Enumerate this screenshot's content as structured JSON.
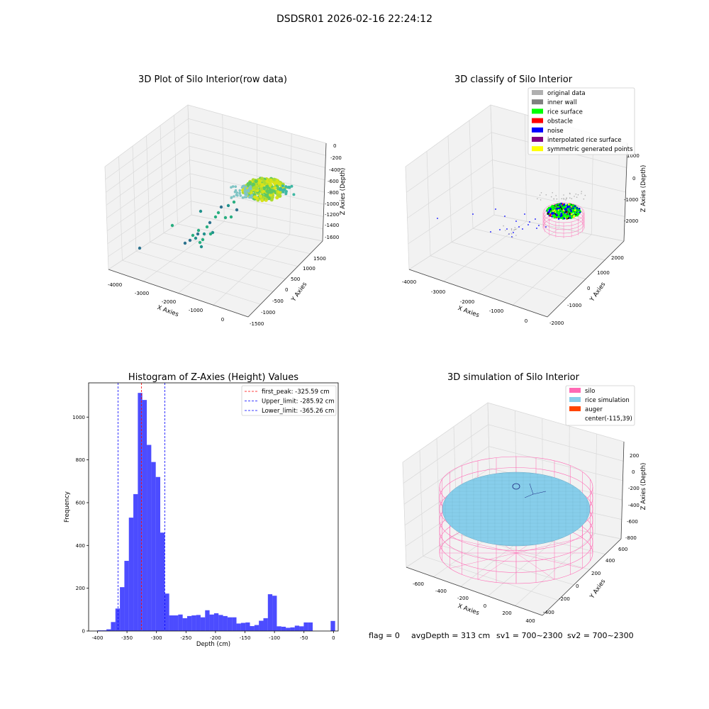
{
  "suptitle": "DSDSR01 2026-02-16 22:24:12",
  "footer": {
    "flag": "flag = 0",
    "avg_depth": "avgDepth = 313 cm",
    "sv1": "sv1 = 700~2300",
    "sv2": "sv2 = 700~2300"
  },
  "chart_data": [
    {
      "type": "scatter",
      "projection": "3d",
      "title": "3D Plot of Silo Interior(row data)",
      "xlabel": "X Axies",
      "ylabel": "Y Axies",
      "zlabel": "Z Axies (Depth)",
      "xticks": [
        "-4000",
        "-3000",
        "-2000",
        "-1000",
        "0"
      ],
      "yticks": [
        "-1500",
        "-1000",
        "-500",
        "0",
        "500",
        "1000",
        "1500"
      ],
      "zticks": [
        "0",
        "-200",
        "-400",
        "-600",
        "-800",
        "-1000",
        "-1200",
        "-1400",
        "-1600"
      ],
      "colormap": "viridis",
      "groups": [
        {
          "name": "rice surface cluster",
          "approx_z": [
            -900,
            -600
          ]
        },
        {
          "name": "scattered points",
          "approx_z": [
            -1700,
            -900
          ]
        }
      ]
    },
    {
      "type": "scatter",
      "projection": "3d",
      "title": "3D classify of Silo Interior",
      "zlabel": "Z Axies (Depth)",
      "ylabel": "Y Axies",
      "xlabel": "X Axies",
      "xticks": [
        "-4000",
        "-3000",
        "-2000",
        "-1000",
        "0"
      ],
      "yticks": [
        "-2000",
        "-1000",
        "0",
        "1000",
        "2000"
      ],
      "zticks": [
        "1000",
        "0",
        "-1000",
        "-2000"
      ],
      "legend_position": "upper right",
      "legend": [
        {
          "label": "original data",
          "color": "#b0b0b0"
        },
        {
          "label": "inner wall",
          "color": "#808080"
        },
        {
          "label": "rice surface",
          "color": "#00ff00"
        },
        {
          "label": "obstacle",
          "color": "#ff0000"
        },
        {
          "label": "noise",
          "color": "#0000ff"
        },
        {
          "label": "interpolated rice surface",
          "color": "#800080"
        },
        {
          "label": "symmetric generated points",
          "color": "#ffff00"
        }
      ]
    },
    {
      "type": "bar",
      "subtype": "histogram",
      "title": "Histogram of Z-Axies (Height) Values",
      "xlabel": "Depth (cm)",
      "ylabel": "Frequency",
      "xlim": [
        -415,
        8
      ],
      "ylim": [
        0,
        1160
      ],
      "xticks": [
        -400,
        -350,
        -300,
        -250,
        -200,
        -150,
        -100,
        -50,
        0
      ],
      "yticks": [
        0,
        200,
        400,
        600,
        800,
        1000
      ],
      "bar_color": "#0000ff",
      "bin_width": 7.6,
      "bins": [
        {
          "x0": -400,
          "count": 3
        },
        {
          "x0": -392.4,
          "count": 3
        },
        {
          "x0": -384.8,
          "count": 8
        },
        {
          "x0": -377.2,
          "count": 42
        },
        {
          "x0": -369.6,
          "count": 105
        },
        {
          "x0": -362,
          "count": 205
        },
        {
          "x0": -354.4,
          "count": 328
        },
        {
          "x0": -346.8,
          "count": 530
        },
        {
          "x0": -339.2,
          "count": 640
        },
        {
          "x0": -331.6,
          "count": 1113
        },
        {
          "x0": -324,
          "count": 1080
        },
        {
          "x0": -316.4,
          "count": 870
        },
        {
          "x0": -308.8,
          "count": 790
        },
        {
          "x0": -301.2,
          "count": 720
        },
        {
          "x0": -293.6,
          "count": 460
        },
        {
          "x0": -286,
          "count": 175
        },
        {
          "x0": -278.4,
          "count": 73
        },
        {
          "x0": -270.8,
          "count": 73
        },
        {
          "x0": -263.2,
          "count": 77
        },
        {
          "x0": -255.6,
          "count": 60
        },
        {
          "x0": -248,
          "count": 70
        },
        {
          "x0": -240.4,
          "count": 73
        },
        {
          "x0": -232.8,
          "count": 75
        },
        {
          "x0": -225.2,
          "count": 64
        },
        {
          "x0": -217.6,
          "count": 97
        },
        {
          "x0": -210,
          "count": 77
        },
        {
          "x0": -202.4,
          "count": 83
        },
        {
          "x0": -194.8,
          "count": 75
        },
        {
          "x0": -187.2,
          "count": 70
        },
        {
          "x0": -179.6,
          "count": 64
        },
        {
          "x0": -172,
          "count": 64
        },
        {
          "x0": -164.4,
          "count": 35
        },
        {
          "x0": -156.8,
          "count": 38
        },
        {
          "x0": -149.2,
          "count": 40
        },
        {
          "x0": -141.6,
          "count": 23
        },
        {
          "x0": -134,
          "count": 28
        },
        {
          "x0": -126.4,
          "count": 48
        },
        {
          "x0": -118.8,
          "count": 60
        },
        {
          "x0": -111.2,
          "count": 172
        },
        {
          "x0": -103.6,
          "count": 165
        },
        {
          "x0": -96,
          "count": 22
        },
        {
          "x0": -88.4,
          "count": 20
        },
        {
          "x0": -80.8,
          "count": 15
        },
        {
          "x0": -73.2,
          "count": 17
        },
        {
          "x0": -65.6,
          "count": 25
        },
        {
          "x0": -58,
          "count": 22
        },
        {
          "x0": -50.4,
          "count": 40
        },
        {
          "x0": -42.8,
          "count": 40
        },
        {
          "x0": -35.2,
          "count": 0
        },
        {
          "x0": -27.6,
          "count": 0
        },
        {
          "x0": -20,
          "count": 0
        },
        {
          "x0": -12.4,
          "count": 0
        },
        {
          "x0": -4.8,
          "count": 47
        }
      ],
      "vlines": [
        {
          "label": "first_peak: -325.59 cm",
          "x": -325.59,
          "color": "#ff0000",
          "style": "dashed"
        },
        {
          "label": "Upper_limit: -285.92 cm",
          "x": -285.92,
          "color": "#0000ff",
          "style": "dashed"
        },
        {
          "label": "Lower_limit: -365.26 cm",
          "x": -365.26,
          "color": "#0000ff",
          "style": "dashed"
        }
      ],
      "legend_position": "upper right"
    },
    {
      "type": "surface",
      "projection": "3d",
      "title": "3D simulation of Silo Interior",
      "xlabel": "X Axies",
      "ylabel": "Y Axies",
      "zlabel": "Z Axies (Depth)",
      "xticks": [
        "-600",
        "-400",
        "-200",
        "0",
        "200",
        "400"
      ],
      "yticks": [
        "-400",
        "-200",
        "0",
        "200",
        "400",
        "600"
      ],
      "zticks": [
        "200",
        "0",
        "-200",
        "-400",
        "-600",
        "-800"
      ],
      "legend_position": "upper right",
      "legend": [
        {
          "label": "silo",
          "color": "#ff69b4"
        },
        {
          "label": "rice simulation",
          "color": "#87ceeb"
        },
        {
          "label": "auger",
          "color": "#ff4500"
        },
        {
          "label": "center(-115,39)",
          "color": ""
        }
      ]
    }
  ]
}
